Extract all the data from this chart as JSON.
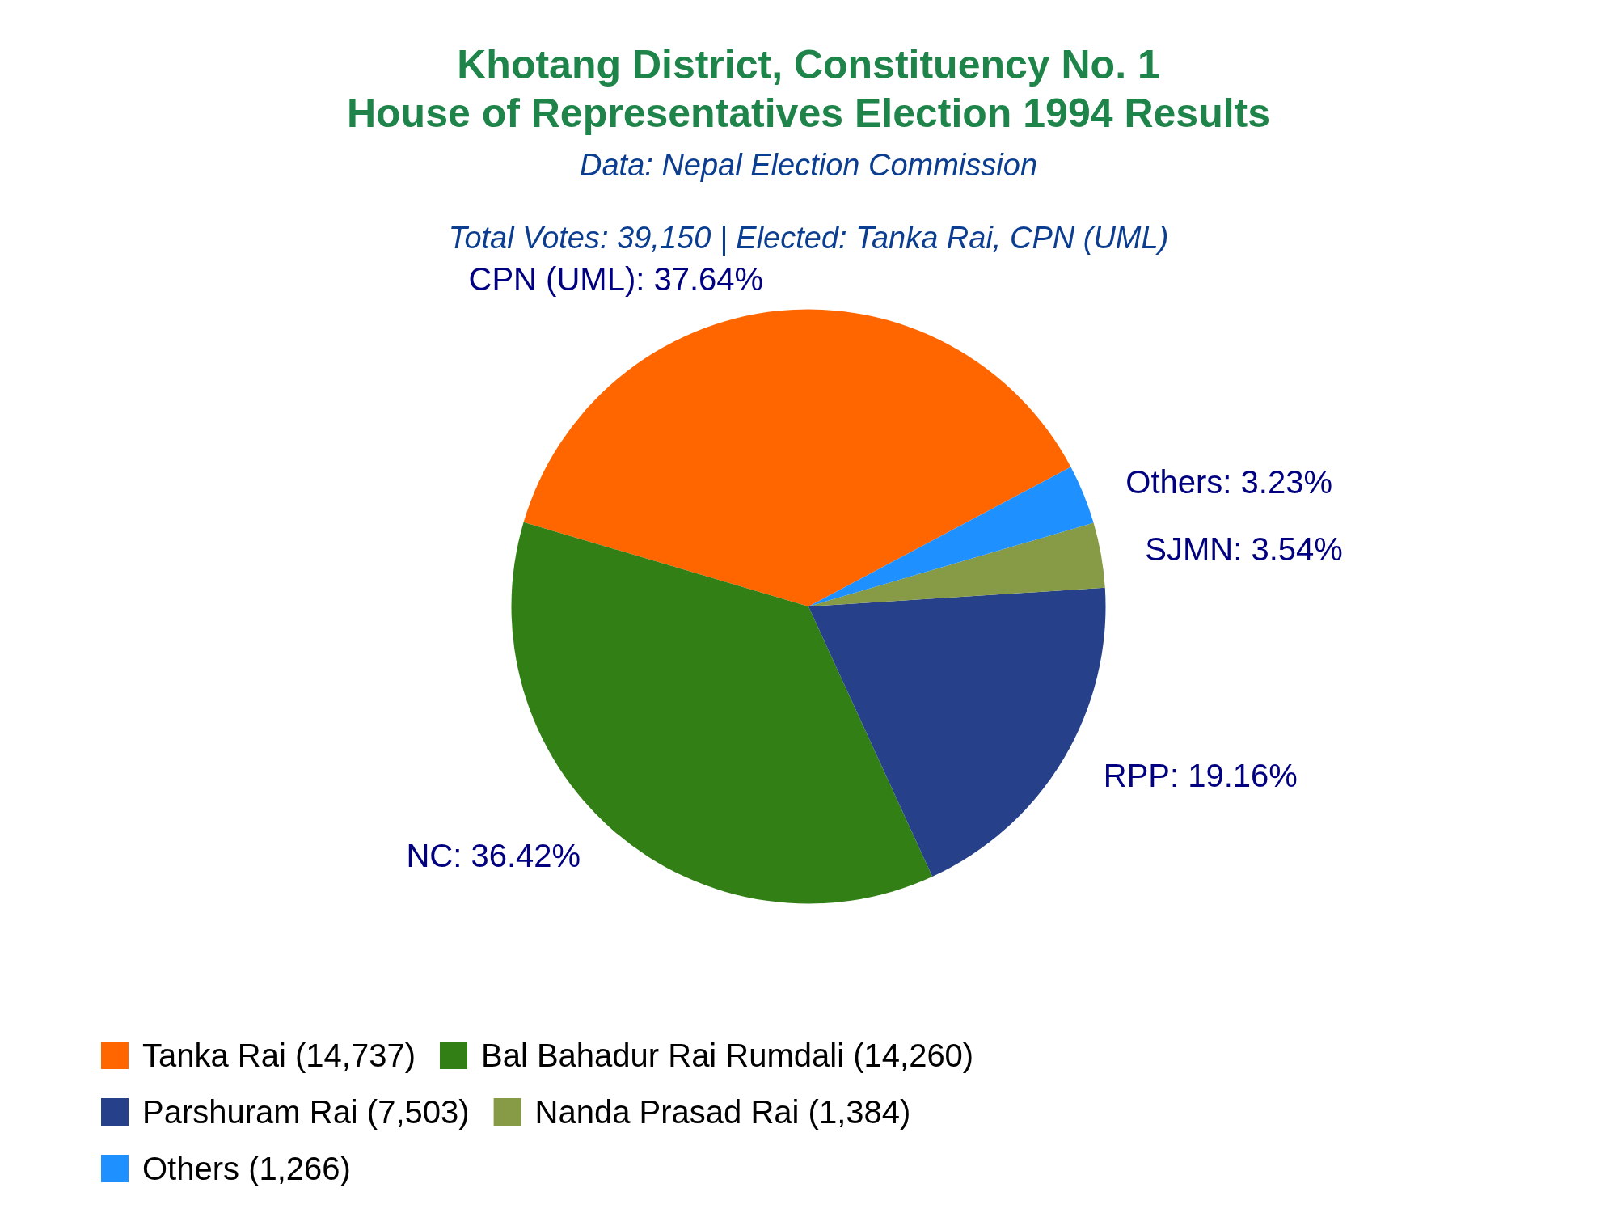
{
  "chart_data": {
    "type": "pie",
    "title": "Khotang District, Constituency No. 1\nHouse of Representatives Election 1994 Results",
    "subtitle": "Data: Nepal Election Commission",
    "annotations": [
      "Total Votes: 39,150 | Elected: Tanka Rai, CPN (UML)"
    ],
    "categories": [
      "Tanka Rai (14,737)",
      "Bal Bahadur Rai Rumdali (14,260)",
      "Parshuram Rai (7,503)",
      "Nanda Prasad Rai (1,384)",
      "Others (1,266)"
    ],
    "values": [
      37.64,
      36.42,
      19.16,
      3.54,
      3.23
    ],
    "colors": [
      "#ff6600",
      "#317f15",
      "#26408a",
      "#879a45",
      "#1e90ff"
    ],
    "value_labels": [
      "CPN (UML): 37.64%",
      "NC: 36.42%",
      "RPP: 19.16%",
      "SJMN: 3.54%",
      "Others: 3.23%"
    ],
    "legend": "bottom left"
  }
}
